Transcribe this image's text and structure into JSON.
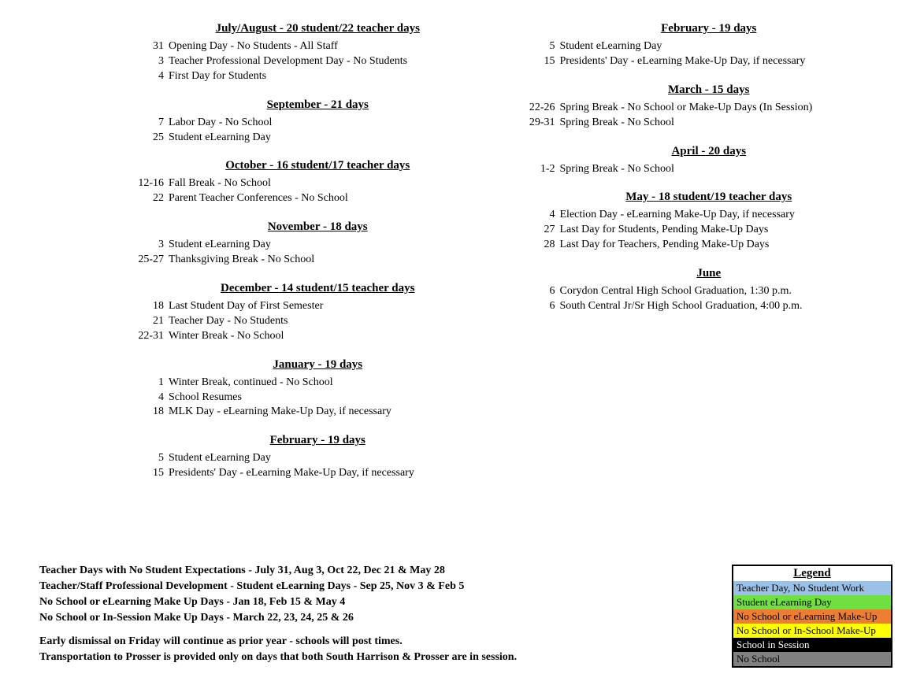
{
  "left": [
    {
      "name": "july-aug",
      "head": "July/August - 20 student/22 teacher days",
      "rows": [
        {
          "d": "31",
          "t": "Opening Day - No Students - All Staff"
        },
        {
          "d": "3",
          "t": "Teacher Professional Development Day - No Students"
        },
        {
          "d": "4",
          "t": "First Day for Students"
        }
      ]
    },
    {
      "name": "september",
      "head": "September - 21 days",
      "rows": [
        {
          "d": "7",
          "t": "Labor Day - No School"
        },
        {
          "d": "25",
          "t": "Student eLearning Day"
        }
      ]
    },
    {
      "name": "october",
      "head": "October - 16 student/17 teacher days",
      "rows": [
        {
          "d": "12-16",
          "t": "Fall Break - No School"
        },
        {
          "d": "22",
          "t": "Parent Teacher Conferences - No School"
        }
      ]
    },
    {
      "name": "november",
      "head": "November - 18 days",
      "rows": [
        {
          "d": "3",
          "t": "Student eLearning Day"
        },
        {
          "d": "25-27",
          "t": "Thanksgiving Break - No School"
        }
      ]
    },
    {
      "name": "december",
      "head": "December - 14 student/15 teacher days",
      "rows": [
        {
          "d": "18",
          "t": "Last Student Day of First Semester"
        },
        {
          "d": "21",
          "t": "Teacher Day - No Students"
        },
        {
          "d": "22-31",
          "t": "Winter Break - No School"
        }
      ]
    },
    {
      "name": "january",
      "head": "January - 19 days",
      "rows": [
        {
          "d": "1",
          "t": "Winter Break, continued - No School"
        },
        {
          "d": "4",
          "t": "School Resumes"
        },
        {
          "d": "18",
          "t": "MLK Day - eLearning Make-Up Day, if necessary"
        }
      ]
    },
    {
      "name": "february-l",
      "head": "February - 19 days",
      "rows": [
        {
          "d": "5",
          "t": "Student eLearning Day"
        },
        {
          "d": "15",
          "t": "Presidents' Day - eLearning Make-Up Day, if necessary"
        }
      ]
    }
  ],
  "right": [
    {
      "name": "february-r",
      "head": "February - 19 days",
      "rows": [
        {
          "d": "5",
          "t": "Student eLearning Day"
        },
        {
          "d": "15",
          "t": "Presidents' Day - eLearning Make-Up Day, if necessary"
        }
      ]
    },
    {
      "name": "march",
      "head": "March - 15 days",
      "rows": [
        {
          "d": "22-26",
          "t": "Spring Break - No School or Make-Up Days (In Session)"
        },
        {
          "d": "29-31",
          "t": "Spring Break  - No School"
        }
      ]
    },
    {
      "name": "april",
      "head": "April - 20 days",
      "rows": [
        {
          "d": "1-2",
          "t": "Spring Break  - No School"
        }
      ]
    },
    {
      "name": "may",
      "head": "May - 18 student/19 teacher days",
      "rows": [
        {
          "d": "4",
          "t": "Election Day - eLearning Make-Up Day, if necessary"
        },
        {
          "d": "27",
          "t": "Last Day for Students, Pending Make-Up Days"
        },
        {
          "d": "28",
          "t": "Last Day for Teachers, Pending Make-Up Days"
        }
      ]
    },
    {
      "name": "june",
      "head": "June",
      "rows": [
        {
          "d": "6",
          "t": "Corydon Central High School Graduation, 1:30 p.m."
        },
        {
          "d": "6",
          "t": "South Central Jr/Sr High School Graduation, 4:00 p.m."
        }
      ]
    }
  ],
  "notes1": [
    "Teacher Days with No Student Expectations - July 31, Aug 3, Oct 22, Dec 21 & May 28",
    "Teacher/Staff Professional Development - Student eLearning Days - Sep 25, Nov 3 & Feb 5",
    "No School or eLearning Make Up Days - Jan 18, Feb 15 & May 4",
    "No School or In-Session Make Up Days - March 22, 23, 24, 25 & 26"
  ],
  "notes2": [
    "Early dismissal on Friday will continue as prior year - schools will post times.",
    "Transportation to Prosser is provided only on days that both South Harrison & Prosser are in session."
  ],
  "legend": {
    "title": "Legend",
    "items": [
      {
        "label": "Teacher Day, No Student Work",
        "bg": "#9bc2e6",
        "dark": false
      },
      {
        "label": "Student eLearning Day",
        "bg": "#70e040",
        "dark": false
      },
      {
        "label": "No School or eLearning Make-Up",
        "bg": "#ed7d31",
        "dark": false
      },
      {
        "label": "No School or In-School Make-Up",
        "bg": "#ffff00",
        "dark": false
      },
      {
        "label": "School in Session",
        "bg": "#000000",
        "dark": true
      },
      {
        "label": "No School",
        "bg": "#808080",
        "dark": false
      }
    ]
  }
}
